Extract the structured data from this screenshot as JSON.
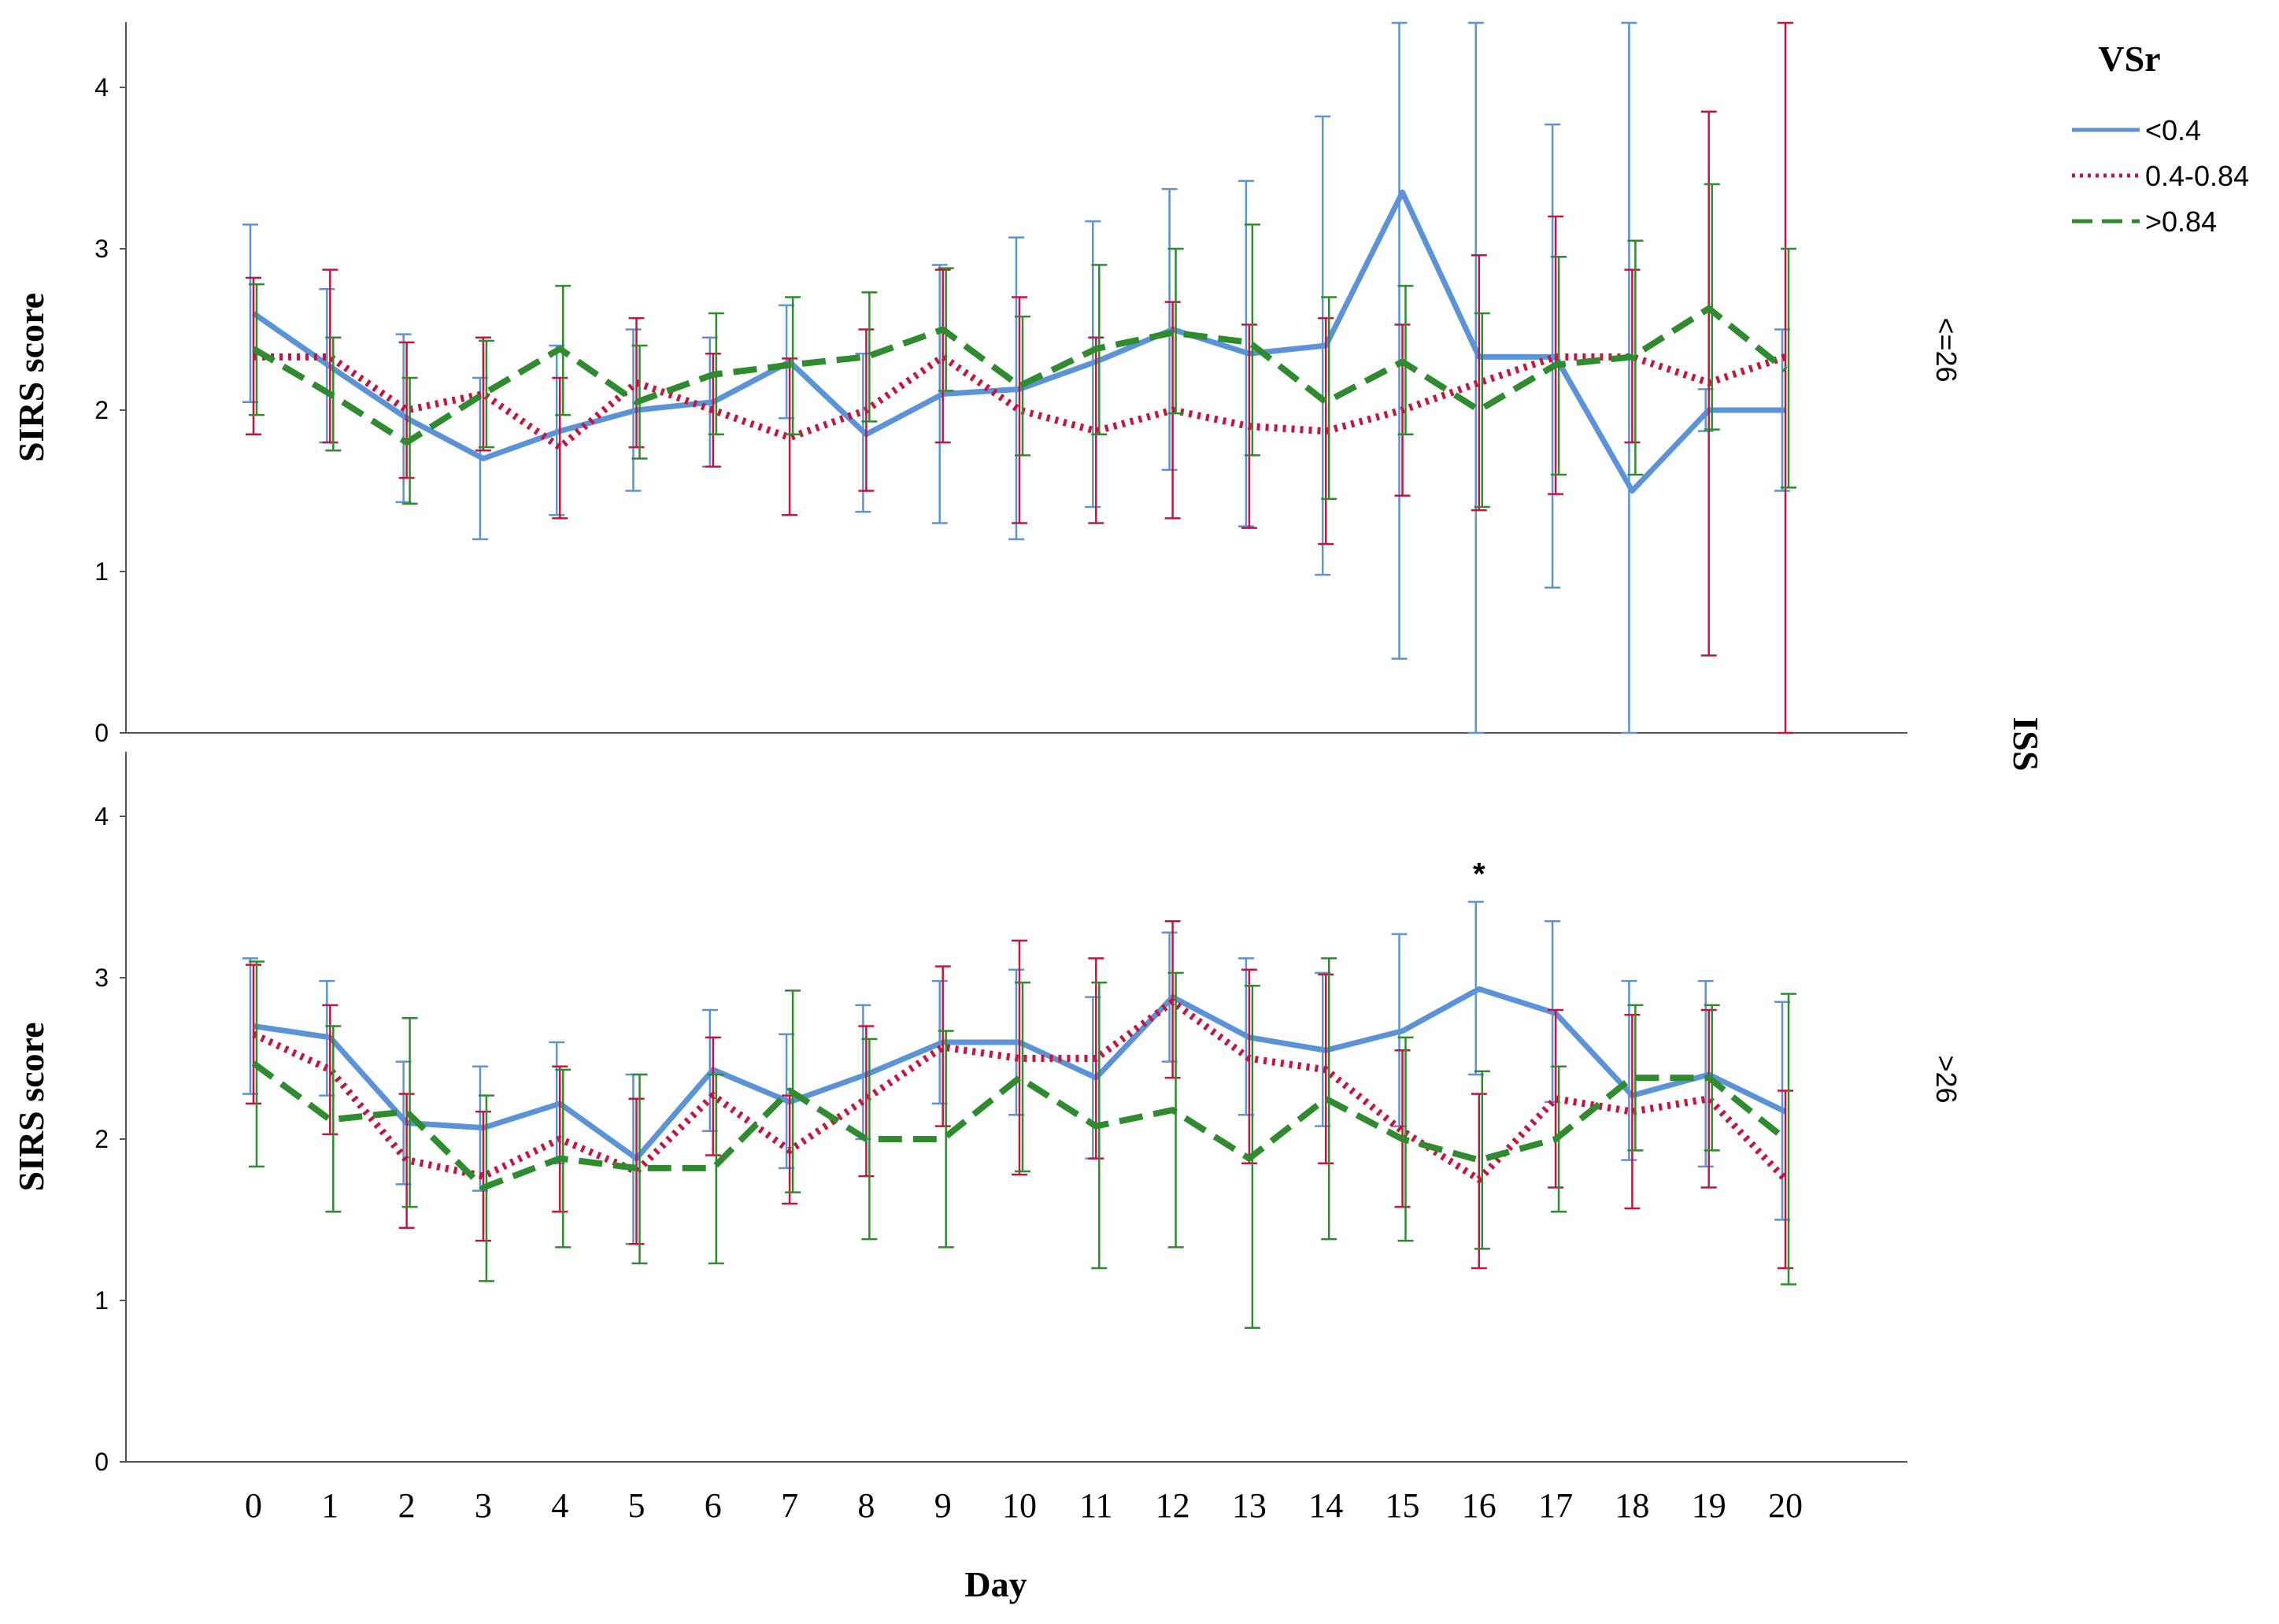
{
  "chart_data": {
    "type": "line",
    "xlabel": "Day",
    "ylabel": "SIRS score",
    "facet_title": "ISS",
    "legend_title": "VSr",
    "legend_position": "top-right",
    "x": [
      0,
      1,
      2,
      3,
      4,
      5,
      6,
      7,
      8,
      9,
      10,
      11,
      12,
      13,
      14,
      15,
      16,
      17,
      18,
      19,
      20
    ],
    "x_tick_labels": [
      "0",
      "1",
      "2",
      "3",
      "4",
      "5",
      "6",
      "7",
      "8",
      "9",
      "10",
      "11",
      "12",
      "13",
      "14",
      "15",
      "16",
      "17",
      "18",
      "19",
      "20"
    ],
    "ylim": [
      0,
      4.4
    ],
    "y_ticks": [
      0,
      1,
      2,
      3,
      4
    ],
    "y_tick_labels": [
      "0",
      "1",
      "2",
      "3",
      "4"
    ],
    "series_styles": [
      {
        "name": "<0.4",
        "color": "#5b93d8",
        "dash": "solid"
      },
      {
        "name": "0.4-0.84",
        "color": "#c8143c",
        "dash": "dotted"
      },
      {
        "name": ">0.84",
        "color": "#2e8b2e",
        "dash": "dashed"
      }
    ],
    "panels": [
      {
        "facet": "<=26",
        "series": [
          {
            "name": "<0.4",
            "values": [
              2.6,
              2.27,
              1.95,
              1.7,
              1.87,
              2.0,
              2.05,
              2.3,
              1.85,
              2.1,
              2.13,
              2.3,
              2.5,
              2.35,
              2.4,
              3.35,
              2.33,
              2.33,
              1.5,
              2.0,
              2.0
            ],
            "lower": [
              2.05,
              1.8,
              1.43,
              1.2,
              1.35,
              1.5,
              1.65,
              1.95,
              1.37,
              1.3,
              1.2,
              1.4,
              1.63,
              1.28,
              0.98,
              0.46,
              0.0,
              0.9,
              0.0,
              1.87,
              1.5
            ],
            "upper": [
              3.15,
              2.75,
              2.47,
              2.2,
              2.4,
              2.5,
              2.45,
              2.65,
              2.35,
              2.9,
              3.07,
              3.17,
              3.37,
              3.42,
              3.82,
              4.4,
              4.4,
              3.77,
              4.4,
              2.13,
              2.5
            ]
          },
          {
            "name": "0.4-0.84",
            "values": [
              2.33,
              2.33,
              2.0,
              2.1,
              1.77,
              2.17,
              2.0,
              1.83,
              2.0,
              2.33,
              2.0,
              1.87,
              2.0,
              1.9,
              1.87,
              2.0,
              2.17,
              2.33,
              2.33,
              2.17,
              2.33
            ],
            "lower": [
              1.85,
              1.8,
              1.58,
              1.75,
              1.33,
              1.77,
              1.65,
              1.35,
              1.5,
              1.8,
              1.3,
              1.3,
              1.33,
              1.27,
              1.17,
              1.47,
              1.38,
              1.48,
              1.8,
              0.48,
              0.0
            ],
            "upper": [
              2.82,
              2.87,
              2.42,
              2.45,
              2.2,
              2.57,
              2.35,
              2.32,
              2.5,
              2.87,
              2.7,
              2.45,
              2.67,
              2.53,
              2.57,
              2.53,
              2.96,
              3.2,
              2.87,
              3.85,
              4.4
            ]
          },
          {
            "name": ">0.84",
            "values": [
              2.38,
              2.1,
              1.8,
              2.1,
              2.38,
              2.05,
              2.22,
              2.28,
              2.33,
              2.5,
              2.15,
              2.38,
              2.48,
              2.42,
              2.05,
              2.3,
              2.0,
              2.28,
              2.33,
              2.63,
              2.25
            ],
            "lower": [
              1.97,
              1.75,
              1.42,
              1.77,
              1.97,
              1.7,
              1.85,
              1.85,
              1.93,
              2.12,
              1.72,
              1.85,
              1.98,
              1.72,
              1.45,
              1.85,
              1.4,
              1.6,
              1.6,
              1.88,
              1.52
            ],
            "upper": [
              2.78,
              2.45,
              2.2,
              2.43,
              2.77,
              2.4,
              2.6,
              2.7,
              2.73,
              2.88,
              2.58,
              2.9,
              3.0,
              3.15,
              2.7,
              2.77,
              2.6,
              2.95,
              3.05,
              3.4,
              3.0
            ]
          }
        ]
      },
      {
        "facet": ">26",
        "series": [
          {
            "name": "<0.4",
            "values": [
              2.7,
              2.63,
              2.1,
              2.07,
              2.22,
              1.88,
              2.43,
              2.23,
              2.4,
              2.6,
              2.6,
              2.38,
              2.88,
              2.63,
              2.55,
              2.67,
              2.93,
              2.78,
              2.27,
              2.4,
              2.17
            ],
            "lower": [
              2.28,
              2.27,
              1.72,
              1.68,
              1.85,
              1.35,
              2.05,
              1.82,
              2.0,
              2.22,
              2.15,
              1.88,
              2.48,
              2.15,
              2.08,
              2.08,
              2.4,
              2.23,
              1.87,
              1.83,
              1.5
            ],
            "upper": [
              3.12,
              2.98,
              2.48,
              2.45,
              2.6,
              2.4,
              2.8,
              2.65,
              2.83,
              2.98,
              3.05,
              2.88,
              3.28,
              3.12,
              3.03,
              3.27,
              3.47,
              3.35,
              2.98,
              2.98,
              2.85
            ]
          },
          {
            "name": "0.4-0.84",
            "values": [
              2.65,
              2.43,
              1.87,
              1.77,
              2.0,
              1.8,
              2.27,
              1.93,
              2.25,
              2.57,
              2.5,
              2.5,
              2.85,
              2.5,
              2.43,
              2.05,
              1.75,
              2.25,
              2.17,
              2.25,
              1.75
            ],
            "lower": [
              2.22,
              2.03,
              1.45,
              1.37,
              1.55,
              1.35,
              1.9,
              1.6,
              1.77,
              2.08,
              1.78,
              1.88,
              2.38,
              1.85,
              1.85,
              1.58,
              1.2,
              1.7,
              1.57,
              1.7,
              1.2
            ],
            "upper": [
              3.08,
              2.83,
              2.28,
              2.17,
              2.45,
              2.25,
              2.63,
              2.27,
              2.7,
              3.07,
              3.23,
              3.12,
              3.35,
              3.05,
              3.02,
              2.55,
              2.28,
              2.8,
              2.77,
              2.8,
              2.3
            ]
          },
          {
            "name": ">0.84",
            "values": [
              2.47,
              2.12,
              2.17,
              1.7,
              1.88,
              1.82,
              1.82,
              2.3,
              2.0,
              2.0,
              2.38,
              2.08,
              2.18,
              1.88,
              2.25,
              2.0,
              1.87,
              2.0,
              2.38,
              2.38,
              2.0
            ],
            "lower": [
              1.83,
              1.55,
              1.58,
              1.12,
              1.33,
              1.23,
              1.23,
              1.67,
              1.38,
              1.33,
              1.8,
              1.2,
              1.33,
              0.83,
              1.38,
              1.37,
              1.32,
              1.55,
              1.93,
              1.93,
              1.1
            ],
            "upper": [
              3.1,
              2.7,
              2.75,
              2.27,
              2.43,
              2.4,
              2.4,
              2.92,
              2.62,
              2.67,
              2.97,
              2.97,
              3.03,
              2.95,
              3.12,
              2.63,
              2.42,
              2.45,
              2.83,
              2.83,
              2.9
            ]
          }
        ]
      }
    ],
    "annotations": [
      {
        "panel": ">26",
        "x": 16,
        "text": "*"
      }
    ]
  }
}
